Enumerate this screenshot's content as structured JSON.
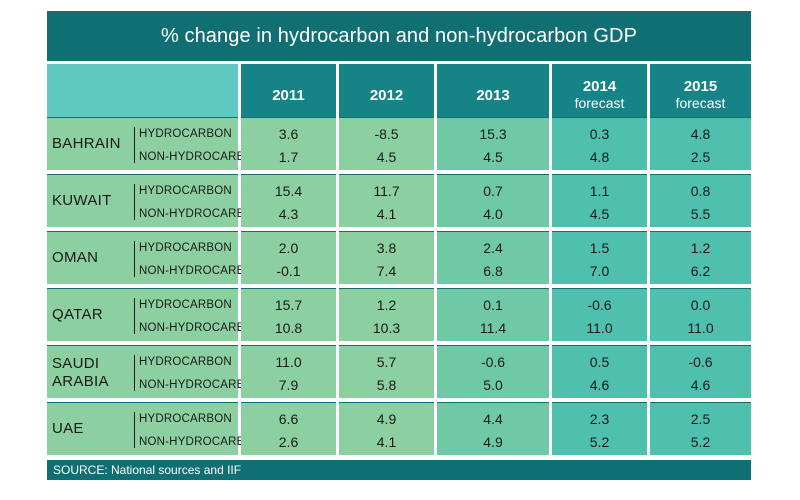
{
  "chart_data": {
    "type": "table",
    "title": "% change in hydrocarbon and non-hydrocarbon GDP",
    "columns": [
      {
        "year": "2011",
        "note": ""
      },
      {
        "year": "2012",
        "note": ""
      },
      {
        "year": "2013",
        "note": ""
      },
      {
        "year": "2014",
        "note": "forecast"
      },
      {
        "year": "2015",
        "note": "forecast"
      }
    ],
    "row_labels": [
      "HYDROCARBON",
      "NON-HYDROCARBON"
    ],
    "countries": [
      {
        "name_lines": [
          "BAHRAIN"
        ],
        "hydrocarbon": [
          "3.6",
          "-8.5",
          "15.3",
          "0.3",
          "4.8"
        ],
        "non_hydrocarbon": [
          "1.7",
          "4.5",
          "4.5",
          "4.8",
          "2.5"
        ]
      },
      {
        "name_lines": [
          "KUWAIT"
        ],
        "hydrocarbon": [
          "15.4",
          "11.7",
          "0.7",
          "1.1",
          "0.8"
        ],
        "non_hydrocarbon": [
          "4.3",
          "4.1",
          "4.0",
          "4.5",
          "5.5"
        ]
      },
      {
        "name_lines": [
          "OMAN"
        ],
        "hydrocarbon": [
          "2.0",
          "3.8",
          "2.4",
          "1.5",
          "1.2"
        ],
        "non_hydrocarbon": [
          "-0.1",
          "7.4",
          "6.8",
          "7.0",
          "6.2"
        ]
      },
      {
        "name_lines": [
          "QATAR"
        ],
        "hydrocarbon": [
          "15.7",
          "1.2",
          "0.1",
          "-0.6",
          "0.0"
        ],
        "non_hydrocarbon": [
          "10.8",
          "10.3",
          "11.4",
          "11.0",
          "11.0"
        ]
      },
      {
        "name_lines": [
          "SAUDI",
          "ARABIA"
        ],
        "hydrocarbon": [
          "11.0",
          "5.7",
          "-0.6",
          "0.5",
          "-0.6"
        ],
        "non_hydrocarbon": [
          "7.9",
          "5.8",
          "5.0",
          "4.6",
          "4.6"
        ]
      },
      {
        "name_lines": [
          "UAE"
        ],
        "hydrocarbon": [
          "6.6",
          "4.9",
          "4.4",
          "2.3",
          "2.5"
        ],
        "non_hydrocarbon": [
          "2.6",
          "4.1",
          "4.9",
          "5.2",
          "5.2"
        ]
      }
    ],
    "source": "SOURCE: National sources and IIF"
  },
  "colors": {
    "title_bg": "#0f6f73",
    "header_bg": "#168387",
    "header_blank": "#5fc9c2",
    "band_light": "#8ccfa0",
    "band_mid": "#6fc9a6",
    "band_dark": "#4fbfae",
    "separator": "#0f6f73"
  }
}
